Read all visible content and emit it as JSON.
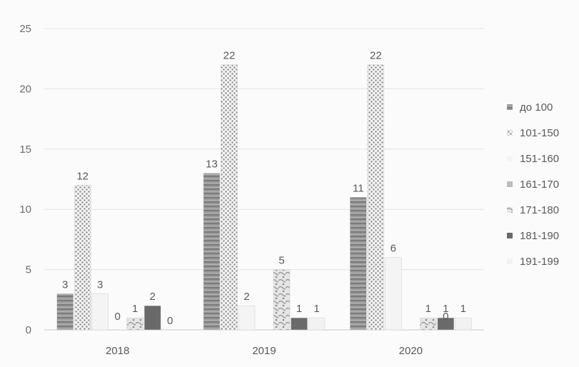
{
  "chart_data": {
    "type": "bar",
    "title": "",
    "xlabel": "",
    "ylabel": "",
    "ylim": [
      0,
      25
    ],
    "yticks": [
      0,
      5,
      10,
      15,
      20,
      25
    ],
    "grid": true,
    "legend_position": "right",
    "categories": [
      "2018",
      "2019",
      "2020"
    ],
    "series": [
      {
        "name": "до 100",
        "values": [
          3,
          13,
          11
        ],
        "color": "#8f8f8f",
        "pattern": "stripes"
      },
      {
        "name": "101-150",
        "values": [
          12,
          22,
          22
        ],
        "color": "#d4d4d4",
        "pattern": "dots"
      },
      {
        "name": "151-160",
        "values": [
          3,
          2,
          6
        ],
        "color": "#f4f4f4",
        "pattern": "none"
      },
      {
        "name": "161-170",
        "values": [
          0,
          0,
          0
        ],
        "color": "#bdbdbd",
        "pattern": "none"
      },
      {
        "name": "171-180",
        "values": [
          1,
          5,
          1
        ],
        "color": "#dedede",
        "pattern": "mottled"
      },
      {
        "name": "181-190",
        "values": [
          2,
          1,
          1
        ],
        "color": "#6a6a6a",
        "pattern": "none"
      },
      {
        "name": "191-199",
        "values": [
          0,
          1,
          1
        ],
        "color": "#f2f2f2",
        "pattern": "none"
      }
    ],
    "data_labels": [
      [
        "3",
        "12",
        "3",
        "",
        "1",
        "2",
        "0"
      ],
      [
        "13",
        "22",
        "2",
        "",
        "5",
        "1",
        "1"
      ],
      [
        "11",
        "22",
        "6",
        "",
        "1",
        "1",
        "1"
      ]
    ],
    "extra_labels": [
      {
        "category": 0,
        "text": "0",
        "after_series": 3
      },
      {
        "category": 2,
        "text": "0",
        "after_series": 5
      }
    ]
  }
}
